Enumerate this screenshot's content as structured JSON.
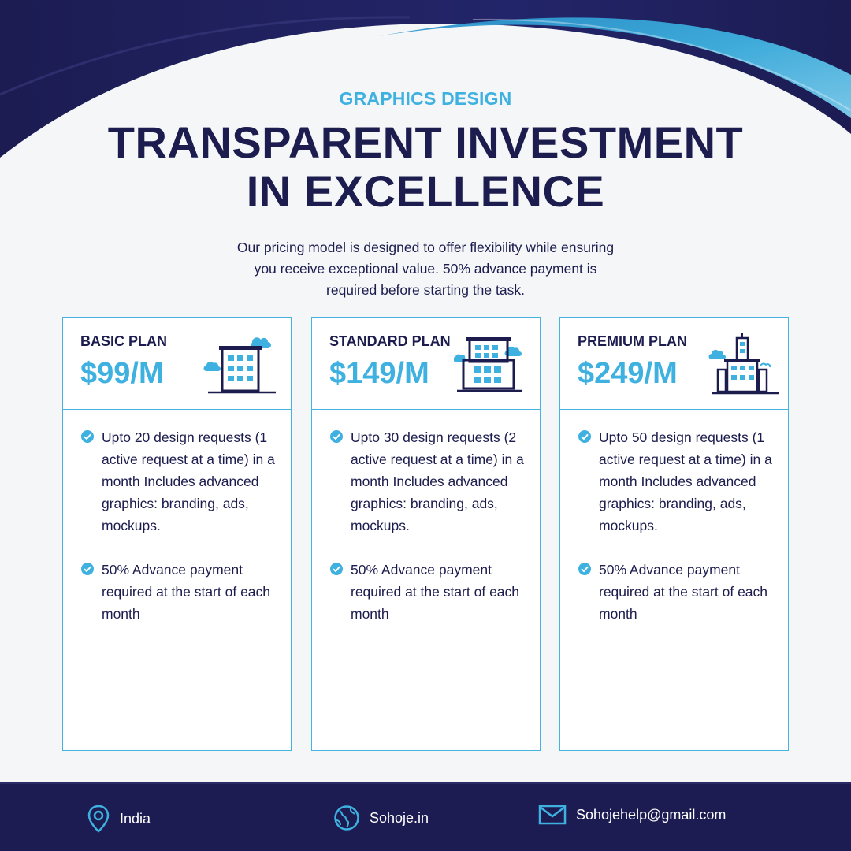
{
  "header": {
    "eyebrow": "GRAPHICS DESIGN",
    "title_line1": "TRANSPARENT INVESTMENT",
    "title_line2": "IN EXCELLENCE",
    "intro": "Our pricing model is designed to offer flexibility while ensuring you receive exceptional value. 50% advance payment is required before starting the task."
  },
  "plans": [
    {
      "name": "BASIC PLAN",
      "price": "$99/M",
      "features": [
        "Upto 20 design requests (1 active request at a time) in a month Includes advanced graphics: branding, ads, mockups.",
        "50% Advance payment required at the start of each month"
      ]
    },
    {
      "name": "STANDARD PLAN",
      "price": "$149/M",
      "features": [
        "Upto 30 design requests (2 active request at a time)  in a month Includes advanced graphics: branding, ads, mockups.",
        "50% Advance payment required at the start of each month"
      ]
    },
    {
      "name": "PREMIUM PLAN",
      "price": "$249/M",
      "features": [
        "Upto 50 design requests (1 active request at a time)  in a month Includes advanced graphics: branding, ads, mockups.",
        "50% Advance payment required at the start of each month"
      ]
    }
  ],
  "footer": {
    "location": "India",
    "website": "Sohoje.in",
    "email": "Sohojehelp@gmail.com"
  },
  "colors": {
    "navy": "#1c1c4e",
    "accent": "#3eb1e0",
    "background": "#f4f6f8"
  }
}
